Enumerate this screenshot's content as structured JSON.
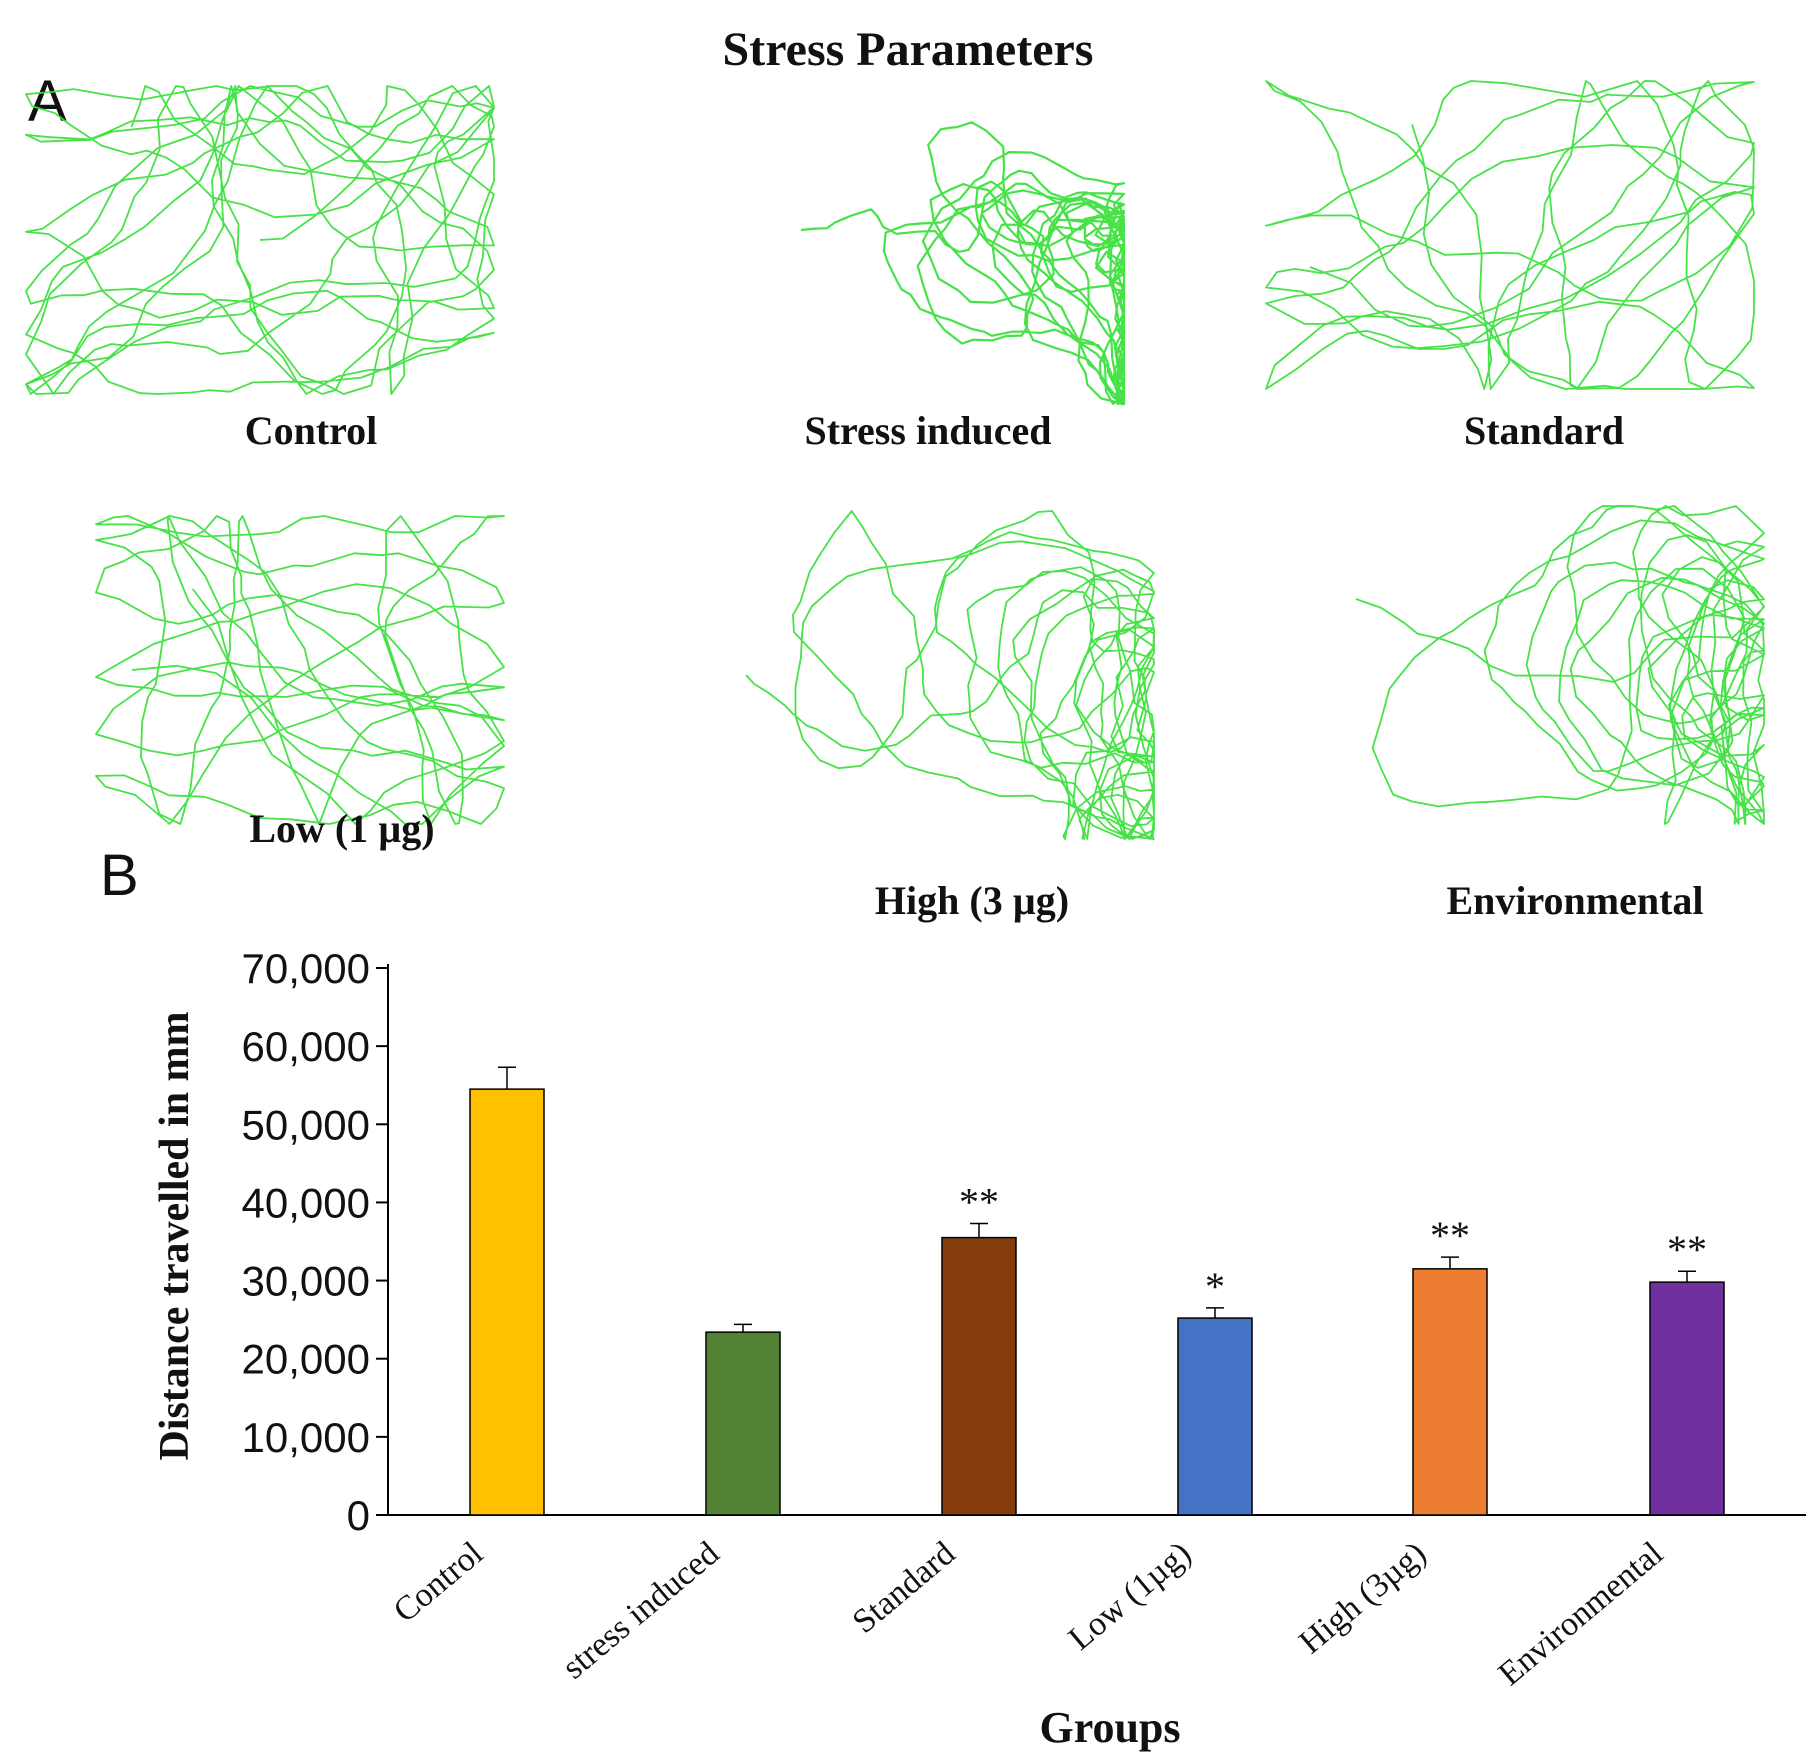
{
  "figure": {
    "title": "Stress Parameters",
    "panel_a_letter": "A",
    "panel_b_letter": "B",
    "track_color": "#3de03d",
    "tracks": [
      {
        "label": "Control"
      },
      {
        "label": "Stress induced"
      },
      {
        "label": "Standard"
      },
      {
        "label": "Low (1 µg)"
      },
      {
        "label": "High (3 µg)"
      },
      {
        "label": "Environmental"
      }
    ]
  },
  "chart_data": {
    "type": "bar",
    "title": "",
    "xlabel": "Groups",
    "ylabel": "Distance travelled in mm",
    "ylim": [
      0,
      70000
    ],
    "yticks": [
      0,
      10000,
      20000,
      30000,
      40000,
      50000,
      60000,
      70000
    ],
    "ytick_labels": [
      "0",
      "10,000",
      "20,000",
      "30,000",
      "40,000",
      "50,000",
      "60,000",
      "70,000"
    ],
    "categories": [
      "Control",
      "stress induced",
      "Standard",
      "Low (1µg)",
      "High (3µg)",
      "Environmental"
    ],
    "values": [
      54500,
      23400,
      35500,
      25200,
      31500,
      29800
    ],
    "errors": [
      2800,
      1000,
      1800,
      1300,
      1500,
      1400
    ],
    "significance": [
      "",
      "",
      "**",
      "*",
      "**",
      "**"
    ],
    "colors": [
      "#ffc000",
      "#548235",
      "#843c0c",
      "#4472c4",
      "#ed7d31",
      "#7030a0"
    ]
  }
}
